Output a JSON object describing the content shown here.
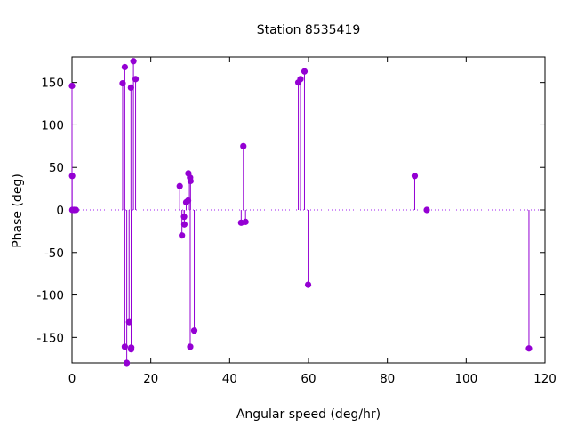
{
  "chart_data": {
    "type": "scatter",
    "style": "impulses-with-points",
    "title": "Station 8535419",
    "xlabel": "Angular speed (deg/hr)",
    "ylabel": "Phase (deg)",
    "xlim": [
      0,
      120
    ],
    "ylim": [
      -180,
      180
    ],
    "xticks": [
      0,
      20,
      40,
      60,
      80,
      100,
      120
    ],
    "yticks": [
      -150,
      -100,
      -50,
      0,
      50,
      100,
      150
    ],
    "zero_line": "dotted",
    "grid": false,
    "color": "#9400d3",
    "points": [
      {
        "x": 0.0,
        "y": 146
      },
      {
        "x": 0.04,
        "y": 40
      },
      {
        "x": 0.08,
        "y": 0
      },
      {
        "x": 0.55,
        "y": 0
      },
      {
        "x": 1.0,
        "y": 0
      },
      {
        "x": 12.85,
        "y": 149
      },
      {
        "x": 13.4,
        "y": -161
      },
      {
        "x": 13.4,
        "y": 168
      },
      {
        "x": 13.9,
        "y": -180
      },
      {
        "x": 14.49,
        "y": -132
      },
      {
        "x": 14.96,
        "y": 144
      },
      {
        "x": 15.0,
        "y": -164
      },
      {
        "x": 15.04,
        "y": -162
      },
      {
        "x": 15.59,
        "y": 175
      },
      {
        "x": 16.14,
        "y": 154
      },
      {
        "x": 27.34,
        "y": 28
      },
      {
        "x": 27.9,
        "y": -30
      },
      {
        "x": 28.44,
        "y": -8
      },
      {
        "x": 28.51,
        "y": -17
      },
      {
        "x": 28.98,
        "y": 9
      },
      {
        "x": 29.46,
        "y": 11
      },
      {
        "x": 29.53,
        "y": 43
      },
      {
        "x": 29.96,
        "y": 38
      },
      {
        "x": 30.0,
        "y": -161
      },
      {
        "x": 30.08,
        "y": 34
      },
      {
        "x": 31.02,
        "y": -142
      },
      {
        "x": 42.93,
        "y": -15
      },
      {
        "x": 43.48,
        "y": 75
      },
      {
        "x": 44.03,
        "y": -14
      },
      {
        "x": 57.42,
        "y": 150
      },
      {
        "x": 57.97,
        "y": 154
      },
      {
        "x": 58.98,
        "y": 163
      },
      {
        "x": 59.9,
        "y": -88
      },
      {
        "x": 86.95,
        "y": 40
      },
      {
        "x": 90.0,
        "y": 0
      },
      {
        "x": 115.93,
        "y": -163
      }
    ]
  }
}
